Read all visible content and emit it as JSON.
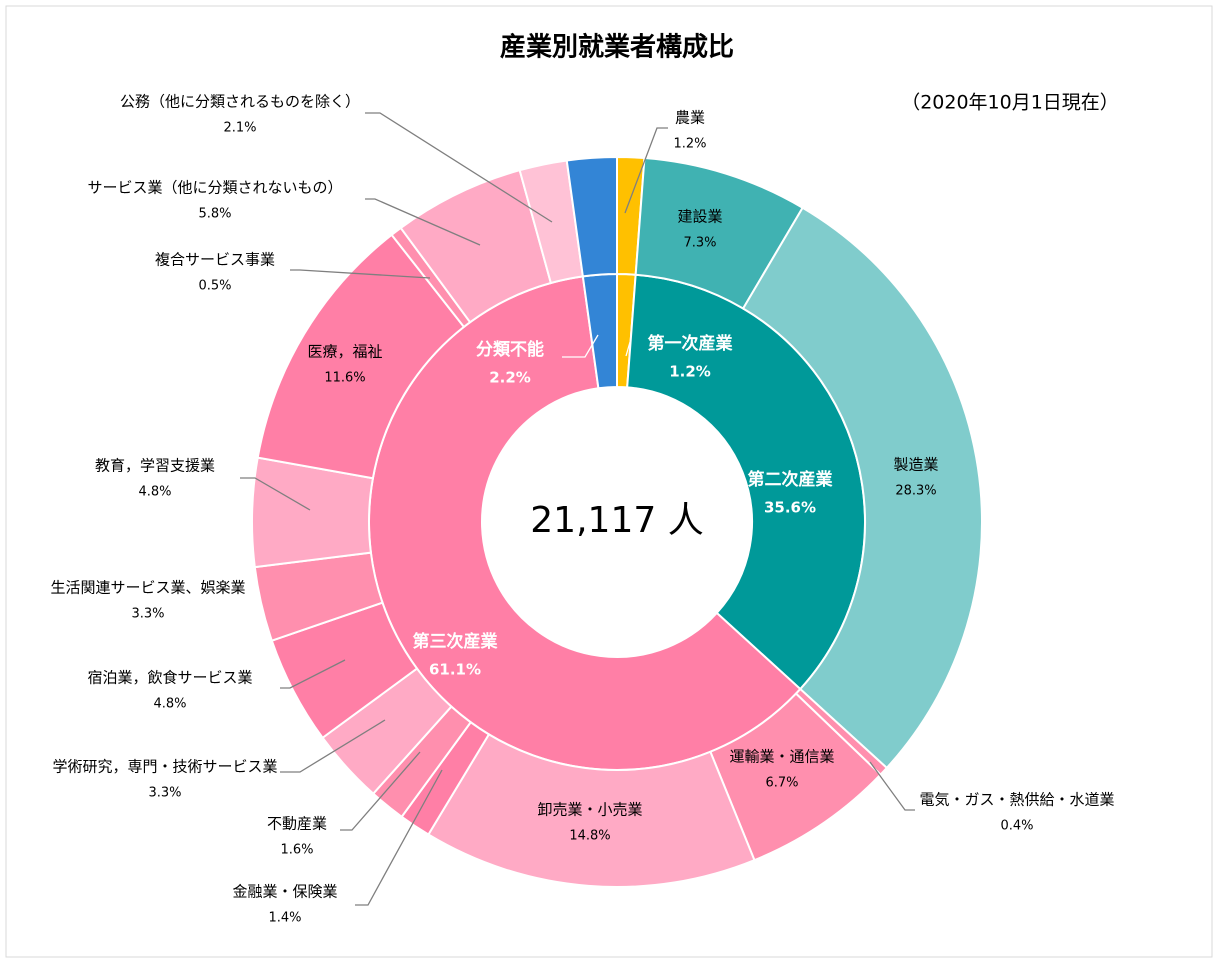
{
  "chart_data": {
    "type": "sunburst",
    "title": "産業別就業者構成比",
    "subtitle": "（2020年10月1日現在）",
    "center_label": "21,117 人",
    "inner": {
      "categories": [
        "第一次産業",
        "第二次産業",
        "第三次産業",
        "分類不能"
      ],
      "values": [
        1.2,
        35.6,
        61.1,
        2.2
      ],
      "value_labels": [
        "1.2%",
        "35.6%",
        "61.1%",
        "2.2%"
      ],
      "colors": [
        "#ffc000",
        "#009999",
        "#ff7fa6",
        "#3385d6"
      ]
    },
    "outer": {
      "categories": [
        "農業",
        "建設業",
        "製造業",
        "電気・ガス・熱供給・水道業",
        "運輸業・通信業",
        "卸売業・小売業",
        "金融業・保険業",
        "不動産業",
        "学術研究，専門・技術サービス業",
        "宿泊業，飲食サービス業",
        "生活関連サービス業、娯楽業",
        "教育，学習支援業",
        "医療，福祉",
        "複合サービス事業",
        "サービス業（他に分類されないもの）",
        "公務（他に分類されるものを除く）",
        null
      ],
      "values": [
        1.2,
        7.3,
        28.3,
        0.4,
        6.7,
        14.8,
        1.4,
        1.6,
        3.3,
        4.8,
        3.3,
        4.8,
        11.6,
        0.5,
        5.8,
        2.1,
        2.2
      ],
      "value_labels": [
        "1.2%",
        "7.3%",
        "28.3%",
        "0.4%",
        "6.7%",
        "14.8%",
        "1.4%",
        "1.6%",
        "3.3%",
        "4.8%",
        "3.3%",
        "4.8%",
        "11.6%",
        "0.5%",
        "5.8%",
        "2.1%",
        null
      ],
      "colors": [
        "#ffc000",
        "#40b2b2",
        "#80cccc",
        "#ff8fae",
        "#ff8fae",
        "#ffaac5",
        "#ff7fa6",
        "#ff8fae",
        "#ffaac5",
        "#ff7fa6",
        "#ff8fae",
        "#ffaac5",
        "#ff7fa6",
        "#ff8fae",
        "#ffaac5",
        "#ffc2d6",
        "#3385d6"
      ]
    }
  }
}
